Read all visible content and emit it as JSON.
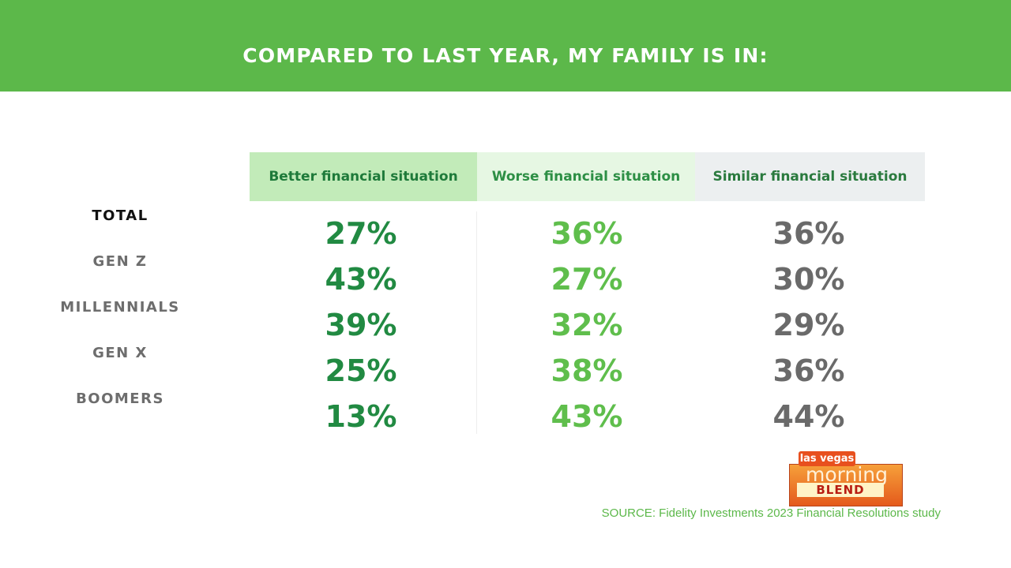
{
  "chart_data": {
    "type": "table",
    "title": "COMPARED TO LAST YEAR, MY FAMILY IS IN:",
    "columns": [
      "Better financial situation",
      "Worse financial situation",
      "Similar financial situation"
    ],
    "rows": [
      {
        "label": "TOTAL",
        "values": [
          "27%",
          "36%",
          "36%"
        ]
      },
      {
        "label": "GEN Z",
        "values": [
          "43%",
          "27%",
          "30%"
        ]
      },
      {
        "label": "MILLENNIALS",
        "values": [
          "39%",
          "32%",
          "29%"
        ]
      },
      {
        "label": "GEN X",
        "values": [
          "25%",
          "38%",
          "36%"
        ]
      },
      {
        "label": "BOOMERS",
        "values": [
          "13%",
          "43%",
          "44%"
        ]
      }
    ],
    "source": "SOURCE: Fidelity Investments 2023 Financial Resolutions study",
    "colors": {
      "banner": "#5cb84a",
      "better": "#218a42",
      "worse": "#5fbe4c",
      "similar": "#6a6a6a"
    }
  },
  "logo": {
    "top": "las vegas",
    "middle": "morning",
    "bottom": "BLEND"
  }
}
